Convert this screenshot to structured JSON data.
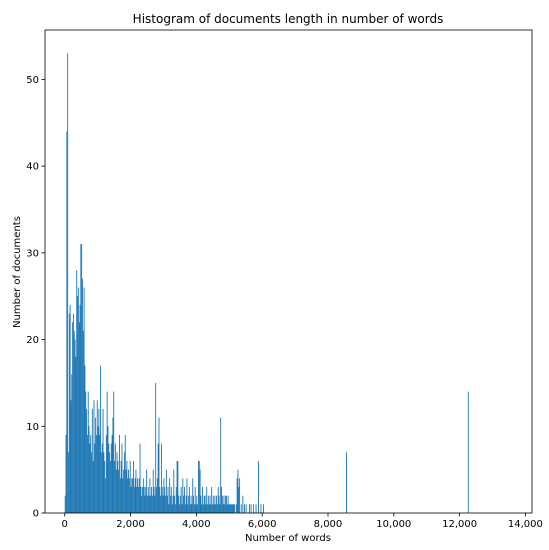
{
  "chart_data": {
    "type": "bar",
    "title": "Histogram of documents length in number of words",
    "xlabel": "Number of words",
    "ylabel": "Number of documents",
    "xlim": [
      -600,
      14200
    ],
    "ylim": [
      0,
      55.7
    ],
    "xticks": [
      0,
      2000,
      4000,
      6000,
      8000,
      10000,
      12000,
      14000
    ],
    "xtick_labels": [
      "0",
      "2,000",
      "4,000",
      "6,000",
      "8,000",
      "10,000",
      "12,000",
      "14,000"
    ],
    "yticks": [
      0,
      10,
      20,
      30,
      40,
      50
    ],
    "ytick_labels": [
      "0",
      "10",
      "20",
      "30",
      "40",
      "50"
    ],
    "grid": false,
    "bin_width": 25,
    "bar_color": "#1f77b4",
    "bins": [
      [
        0,
        2
      ],
      [
        25,
        9
      ],
      [
        50,
        44
      ],
      [
        75,
        53
      ],
      [
        100,
        7
      ],
      [
        125,
        23
      ],
      [
        150,
        24
      ],
      [
        175,
        13
      ],
      [
        200,
        16
      ],
      [
        225,
        22
      ],
      [
        250,
        23
      ],
      [
        275,
        21
      ],
      [
        300,
        20
      ],
      [
        325,
        18
      ],
      [
        350,
        28
      ],
      [
        375,
        25
      ],
      [
        400,
        26
      ],
      [
        425,
        22
      ],
      [
        450,
        24
      ],
      [
        475,
        31
      ],
      [
        500,
        31
      ],
      [
        525,
        27
      ],
      [
        550,
        21
      ],
      [
        575,
        26
      ],
      [
        600,
        17
      ],
      [
        625,
        14
      ],
      [
        650,
        12
      ],
      [
        675,
        9
      ],
      [
        700,
        14
      ],
      [
        725,
        10
      ],
      [
        750,
        8
      ],
      [
        775,
        9
      ],
      [
        800,
        7
      ],
      [
        825,
        12
      ],
      [
        850,
        6
      ],
      [
        875,
        13
      ],
      [
        900,
        8
      ],
      [
        925,
        11
      ],
      [
        950,
        9
      ],
      [
        975,
        13
      ],
      [
        1000,
        10
      ],
      [
        1025,
        12
      ],
      [
        1050,
        9
      ],
      [
        1075,
        17
      ],
      [
        1100,
        7
      ],
      [
        1125,
        8
      ],
      [
        1150,
        12
      ],
      [
        1175,
        7
      ],
      [
        1200,
        6
      ],
      [
        1225,
        4
      ],
      [
        1250,
        9
      ],
      [
        1275,
        14
      ],
      [
        1300,
        10
      ],
      [
        1325,
        8
      ],
      [
        1350,
        7
      ],
      [
        1375,
        6
      ],
      [
        1400,
        8
      ],
      [
        1425,
        9
      ],
      [
        1450,
        11
      ],
      [
        1475,
        14
      ],
      [
        1500,
        6
      ],
      [
        1525,
        8
      ],
      [
        1550,
        5
      ],
      [
        1575,
        7
      ],
      [
        1600,
        6
      ],
      [
        1625,
        5
      ],
      [
        1650,
        9
      ],
      [
        1675,
        4
      ],
      [
        1700,
        6
      ],
      [
        1725,
        8
      ],
      [
        1750,
        4
      ],
      [
        1775,
        5
      ],
      [
        1800,
        7
      ],
      [
        1825,
        9
      ],
      [
        1850,
        5
      ],
      [
        1875,
        6
      ],
      [
        1900,
        4
      ],
      [
        1925,
        5
      ],
      [
        1950,
        4
      ],
      [
        1975,
        6
      ],
      [
        2000,
        3
      ],
      [
        2025,
        4
      ],
      [
        2050,
        4
      ],
      [
        2075,
        6
      ],
      [
        2100,
        3
      ],
      [
        2125,
        4
      ],
      [
        2150,
        5
      ],
      [
        2175,
        3
      ],
      [
        2200,
        4
      ],
      [
        2225,
        3
      ],
      [
        2250,
        4
      ],
      [
        2275,
        8
      ],
      [
        2300,
        3
      ],
      [
        2325,
        2
      ],
      [
        2350,
        3
      ],
      [
        2375,
        4
      ],
      [
        2400,
        3
      ],
      [
        2425,
        2
      ],
      [
        2450,
        3
      ],
      [
        2475,
        5
      ],
      [
        2500,
        2
      ],
      [
        2525,
        3
      ],
      [
        2550,
        2
      ],
      [
        2575,
        4
      ],
      [
        2600,
        2
      ],
      [
        2625,
        3
      ],
      [
        2650,
        2
      ],
      [
        2675,
        5
      ],
      [
        2700,
        3
      ],
      [
        2725,
        2
      ],
      [
        2750,
        15
      ],
      [
        2775,
        3
      ],
      [
        2800,
        4
      ],
      [
        2825,
        8
      ],
      [
        2850,
        11
      ],
      [
        2875,
        3
      ],
      [
        2900,
        2
      ],
      [
        2925,
        8
      ],
      [
        2950,
        3
      ],
      [
        2975,
        2
      ],
      [
        3000,
        4
      ],
      [
        3025,
        3
      ],
      [
        3050,
        2
      ],
      [
        3075,
        5
      ],
      [
        3100,
        2
      ],
      [
        3125,
        3
      ],
      [
        3150,
        1
      ],
      [
        3175,
        4
      ],
      [
        3200,
        2
      ],
      [
        3225,
        3
      ],
      [
        3250,
        1
      ],
      [
        3275,
        2
      ],
      [
        3300,
        5
      ],
      [
        3325,
        2
      ],
      [
        3350,
        1
      ],
      [
        3375,
        3
      ],
      [
        3400,
        6
      ],
      [
        3425,
        6
      ],
      [
        3450,
        2
      ],
      [
        3475,
        1
      ],
      [
        3500,
        2
      ],
      [
        3525,
        3
      ],
      [
        3550,
        1
      ],
      [
        3575,
        4
      ],
      [
        3600,
        2
      ],
      [
        3625,
        3
      ],
      [
        3650,
        1
      ],
      [
        3675,
        2
      ],
      [
        3700,
        4
      ],
      [
        3725,
        1
      ],
      [
        3750,
        2
      ],
      [
        3775,
        3
      ],
      [
        3800,
        1
      ],
      [
        3825,
        2
      ],
      [
        3850,
        1
      ],
      [
        3875,
        4
      ],
      [
        3900,
        2
      ],
      [
        3925,
        1
      ],
      [
        3950,
        3
      ],
      [
        3975,
        1
      ],
      [
        4000,
        2
      ],
      [
        4025,
        1
      ],
      [
        4050,
        6
      ],
      [
        4075,
        6
      ],
      [
        4100,
        5
      ],
      [
        4125,
        2
      ],
      [
        4150,
        1
      ],
      [
        4175,
        3
      ],
      [
        4200,
        1
      ],
      [
        4225,
        2
      ],
      [
        4250,
        2
      ],
      [
        4275,
        1
      ],
      [
        4300,
        3
      ],
      [
        4325,
        1
      ],
      [
        4350,
        2
      ],
      [
        4375,
        1
      ],
      [
        4400,
        2
      ],
      [
        4425,
        1
      ],
      [
        4450,
        3
      ],
      [
        4475,
        1
      ],
      [
        4500,
        2
      ],
      [
        4525,
        1
      ],
      [
        4550,
        2
      ],
      [
        4575,
        1
      ],
      [
        4600,
        2
      ],
      [
        4625,
        1
      ],
      [
        4650,
        3
      ],
      [
        4675,
        2
      ],
      [
        4700,
        1
      ],
      [
        4725,
        11
      ],
      [
        4750,
        3
      ],
      [
        4775,
        2
      ],
      [
        4800,
        1
      ],
      [
        4825,
        2
      ],
      [
        4850,
        1
      ],
      [
        4875,
        2
      ],
      [
        4900,
        2
      ],
      [
        4925,
        1
      ],
      [
        4950,
        2
      ],
      [
        4975,
        1
      ],
      [
        5000,
        1
      ],
      [
        5025,
        1
      ],
      [
        5050,
        1
      ],
      [
        5075,
        1
      ],
      [
        5100,
        1
      ],
      [
        5125,
        1
      ],
      [
        5150,
        1
      ],
      [
        5200,
        1
      ],
      [
        5225,
        4
      ],
      [
        5250,
        5
      ],
      [
        5275,
        3
      ],
      [
        5300,
        4
      ],
      [
        5350,
        1
      ],
      [
        5400,
        2
      ],
      [
        5450,
        1
      ],
      [
        5500,
        1
      ],
      [
        5600,
        1
      ],
      [
        5650,
        1
      ],
      [
        5725,
        1
      ],
      [
        5800,
        1
      ],
      [
        5875,
        6
      ],
      [
        5950,
        1
      ],
      [
        6025,
        1
      ],
      [
        8550,
        7
      ],
      [
        12250,
        14
      ]
    ]
  }
}
